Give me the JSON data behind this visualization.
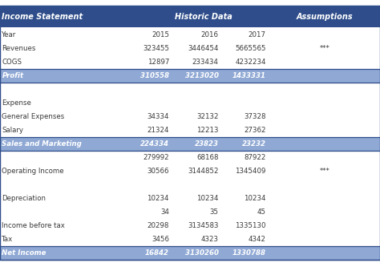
{
  "title_row": [
    "Income Statement",
    "Historic Data",
    "Assumptions"
  ],
  "header_bg": "#2E4D8A",
  "header_fg": "#FFFFFF",
  "highlight_bg": "#8FA8D4",
  "highlight_fg": "#FFFFFF",
  "normal_bg": "#FFFFFF",
  "normal_fg": "#3A3A3A",
  "border_color": "#2E4D8A",
  "rows": [
    {
      "label": "Year",
      "v2015": "2015",
      "v2016": "2016",
      "v2017": "2017",
      "note": "",
      "highlight": false,
      "bold_italic": false
    },
    {
      "label": "Revenues",
      "v2015": "323455",
      "v2016": "3446454",
      "v2017": "5665565",
      "note": "***",
      "highlight": false,
      "bold_italic": false
    },
    {
      "label": "COGS",
      "v2015": "12897",
      "v2016": "233434",
      "v2017": "4232234",
      "note": "",
      "highlight": false,
      "bold_italic": false
    },
    {
      "label": "Profit",
      "v2015": "310558",
      "v2016": "3213020",
      "v2017": "1433331",
      "note": "",
      "highlight": true,
      "bold_italic": true
    },
    {
      "label": "",
      "v2015": "",
      "v2016": "",
      "v2017": "",
      "note": "",
      "highlight": false,
      "bold_italic": false
    },
    {
      "label": "Expense",
      "v2015": "",
      "v2016": "",
      "v2017": "",
      "note": "",
      "highlight": false,
      "bold_italic": false
    },
    {
      "label": "General Expenses",
      "v2015": "34334",
      "v2016": "32132",
      "v2017": "37328",
      "note": "",
      "highlight": false,
      "bold_italic": false
    },
    {
      "label": "Salary",
      "v2015": "21324",
      "v2016": "12213",
      "v2017": "27362",
      "note": "",
      "highlight": false,
      "bold_italic": false
    },
    {
      "label": "Sales and Marketing",
      "v2015": "224334",
      "v2016": "23823",
      "v2017": "23232",
      "note": "",
      "highlight": true,
      "bold_italic": true
    },
    {
      "label": "",
      "v2015": "279992",
      "v2016": "68168",
      "v2017": "87922",
      "note": "",
      "highlight": false,
      "bold_italic": false
    },
    {
      "label": "Operating Income",
      "v2015": "30566",
      "v2016": "3144852",
      "v2017": "1345409",
      "note": "***",
      "highlight": false,
      "bold_italic": false
    },
    {
      "label": "",
      "v2015": "",
      "v2016": "",
      "v2017": "",
      "note": "",
      "highlight": false,
      "bold_italic": false
    },
    {
      "label": "Depreciation",
      "v2015": "10234",
      "v2016": "10234",
      "v2017": "10234",
      "note": "",
      "highlight": false,
      "bold_italic": false
    },
    {
      "label": "",
      "v2015": "34",
      "v2016": "35",
      "v2017": "45",
      "note": "",
      "highlight": false,
      "bold_italic": false
    },
    {
      "label": "Income before tax",
      "v2015": "20298",
      "v2016": "3134583",
      "v2017": "1335130",
      "note": "",
      "highlight": false,
      "bold_italic": false
    },
    {
      "label": "Tax",
      "v2015": "3456",
      "v2016": "4323",
      "v2017": "4342",
      "note": "",
      "highlight": false,
      "bold_italic": false
    },
    {
      "label": "Net Income",
      "v2015": "16842",
      "v2016": "3130260",
      "v2017": "1330788",
      "note": "",
      "highlight": true,
      "bold_italic": true
    }
  ],
  "figsize": [
    4.74,
    3.38
  ],
  "dpi": 100,
  "font_size": 6.2,
  "header_font_size": 7.0
}
